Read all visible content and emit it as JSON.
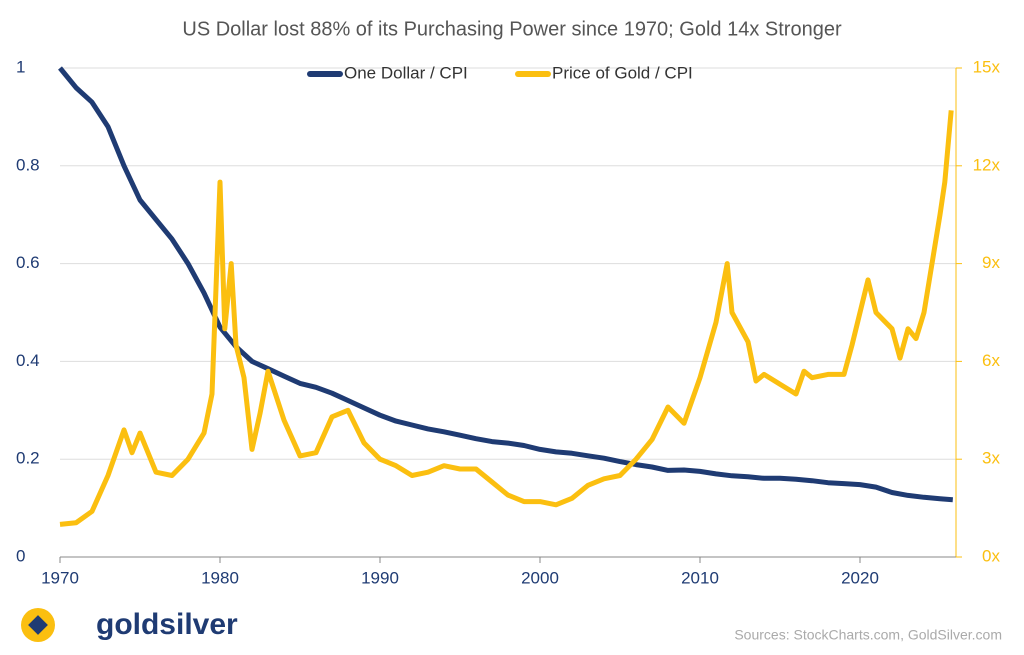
{
  "chart_data": {
    "type": "line",
    "title": "US Dollar lost 88% of its Purchasing Power since 1970; Gold 14x Stronger",
    "xlim": [
      1970,
      2026
    ],
    "xticks": [
      1970,
      1980,
      1990,
      2000,
      2010,
      2020
    ],
    "ylim": [
      0,
      1
    ],
    "yticks": [
      0,
      0.2,
      0.4,
      0.6,
      0.8,
      1
    ],
    "y2lim": [
      0,
      15
    ],
    "y2ticks": [
      {
        "value": 0,
        "label": "0x"
      },
      {
        "value": 3,
        "label": "3x"
      },
      {
        "value": 6,
        "label": "6x"
      },
      {
        "value": 9,
        "label": "9x"
      },
      {
        "value": 12,
        "label": "12x"
      },
      {
        "value": 15,
        "label": "15x"
      }
    ],
    "grid": true,
    "legend": "top",
    "series": [
      {
        "name": "One Dollar / CPI",
        "color": "#1f3b73",
        "x": [
          1970,
          1971,
          1972,
          1973,
          1974,
          1975,
          1976,
          1977,
          1978,
          1979,
          1980,
          1981,
          1982,
          1983,
          1984,
          1985,
          1986,
          1987,
          1988,
          1989,
          1990,
          1991,
          1992,
          1993,
          1994,
          1995,
          1996,
          1997,
          1998,
          1999,
          2000,
          2001,
          2002,
          2003,
          2004,
          2005,
          2006,
          2007,
          2008,
          2009,
          2010,
          2011,
          2012,
          2013,
          2014,
          2015,
          2016,
          2017,
          2018,
          2019,
          2020,
          2021,
          2022,
          2023,
          2024,
          2025,
          2025.8
        ],
        "values": [
          1.0,
          0.96,
          0.93,
          0.88,
          0.8,
          0.73,
          0.69,
          0.65,
          0.6,
          0.54,
          0.47,
          0.43,
          0.4,
          0.385,
          0.37,
          0.355,
          0.347,
          0.335,
          0.32,
          0.305,
          0.29,
          0.278,
          0.27,
          0.262,
          0.256,
          0.249,
          0.242,
          0.236,
          0.233,
          0.228,
          0.22,
          0.215,
          0.212,
          0.207,
          0.202,
          0.195,
          0.189,
          0.184,
          0.177,
          0.178,
          0.175,
          0.17,
          0.166,
          0.164,
          0.161,
          0.161,
          0.159,
          0.156,
          0.152,
          0.15,
          0.148,
          0.143,
          0.132,
          0.126,
          0.122,
          0.119,
          0.117
        ]
      },
      {
        "name": "Price of Gold / CPI",
        "color": "#fbbf10",
        "axis": "y2",
        "x": [
          1970,
          1971,
          1972,
          1973,
          1974,
          1974.5,
          1975,
          1976,
          1977,
          1978,
          1979,
          1979.5,
          1980,
          1980.3,
          1980.7,
          1981,
          1981.5,
          1982,
          1982.5,
          1983,
          1984,
          1985,
          1986,
          1987,
          1988,
          1989,
          1990,
          1991,
          1992,
          1993,
          1994,
          1995,
          1996,
          1997,
          1998,
          1999,
          2000,
          2001,
          2002,
          2003,
          2004,
          2005,
          2006,
          2007,
          2008,
          2009,
          2010,
          2011,
          2011.7,
          2012,
          2013,
          2013.5,
          2014,
          2015,
          2016,
          2016.5,
          2017,
          2018,
          2019,
          2019.5,
          2020.5,
          2021,
          2022,
          2022.5,
          2023,
          2023.5,
          2024,
          2024.5,
          2025,
          2025.3,
          2025.7
        ],
        "values": [
          1.0,
          1.05,
          1.4,
          2.5,
          3.9,
          3.2,
          3.8,
          2.6,
          2.5,
          3.0,
          3.8,
          5.0,
          11.5,
          7.0,
          9.0,
          6.5,
          5.5,
          3.3,
          4.4,
          5.7,
          4.2,
          3.1,
          3.2,
          4.3,
          4.5,
          3.5,
          3.0,
          2.8,
          2.5,
          2.6,
          2.8,
          2.7,
          2.7,
          2.3,
          1.9,
          1.7,
          1.7,
          1.6,
          1.8,
          2.2,
          2.4,
          2.5,
          3.0,
          3.6,
          4.6,
          4.1,
          5.5,
          7.2,
          9.0,
          7.5,
          6.6,
          5.4,
          5.6,
          5.3,
          5.0,
          5.7,
          5.5,
          5.6,
          5.6,
          6.5,
          8.5,
          7.5,
          7.0,
          6.1,
          7.0,
          6.7,
          7.5,
          9.0,
          10.5,
          11.5,
          13.7
        ]
      }
    ]
  },
  "logo": "goldsilver",
  "source": "Sources: StockCharts.com, GoldSilver.com"
}
